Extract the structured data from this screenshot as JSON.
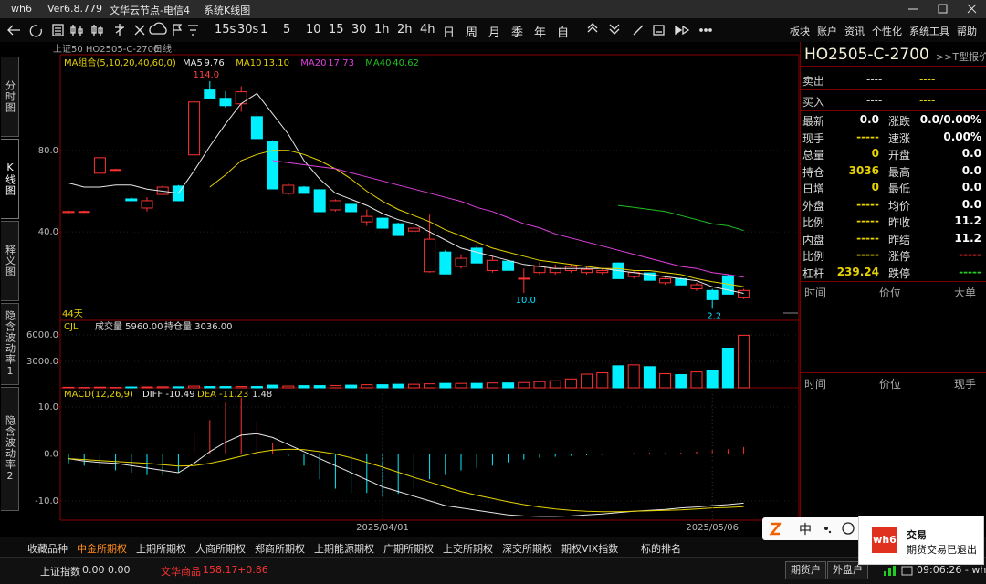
{
  "title_bar": {
    "app": "wh6",
    "version": "Ver6.8.779",
    "node": "文华云节点-电信4",
    "view": "系统K线图"
  },
  "toolbar": {
    "periods": [
      "15s",
      "30s",
      "1",
      "5",
      "10",
      "15",
      "30",
      "1h",
      "2h",
      "4h",
      "日",
      "周",
      "月",
      "季",
      "年",
      "自"
    ],
    "menu": [
      "板块",
      "账户",
      "资讯",
      "个性化",
      "系统工具",
      "帮助"
    ]
  },
  "side_tabs": [
    "分时图",
    "K线图",
    "释义图",
    "隐含波动率1",
    "隐含波动率2"
  ],
  "chart_header": {
    "symbol": "上证50 HO2505-C-2700",
    "period": "日线"
  },
  "kline": {
    "legend": "MA组合(5,10,20,40,60,0)",
    "ylim": [
      -3,
      127
    ],
    "yticks": [
      {
        "value": 40,
        "label": "40.0"
      },
      {
        "value": 80,
        "label": "80.0"
      }
    ],
    "up_color": "#ff3232",
    "down_color": "#00f0ff",
    "days": "44天",
    "high_label": "114.0",
    "low_labels": [
      "10.0",
      "2.2"
    ],
    "dates": [
      null,
      null,
      null,
      null,
      null,
      null,
      null,
      null,
      null,
      null,
      null,
      null,
      null,
      null,
      null,
      null,
      null,
      null,
      null,
      null,
      "2025/04/01",
      null,
      null,
      null,
      null,
      null,
      null,
      null,
      null,
      null,
      null,
      null,
      null,
      null,
      null,
      null,
      null,
      null,
      null,
      null,
      null,
      "2025/05/06",
      null,
      null
    ],
    "candles": [
      [
        49.5,
        50.5,
        49,
        50
      ],
      [
        50,
        50.5,
        49.5,
        50
      ],
      [
        68.8,
        76.4,
        68.8,
        76.4
      ],
      [
        70.6,
        71,
        70.4,
        70.6
      ],
      [
        56.2,
        57,
        55,
        55.3
      ],
      [
        51.7,
        57,
        50,
        55.3
      ],
      [
        58.4,
        63,
        58,
        62
      ],
      [
        62.5,
        63,
        55,
        55.3
      ],
      [
        77.8,
        105,
        77.8,
        103.8
      ],
      [
        109.7,
        114,
        105.6,
        105.6
      ],
      [
        105.6,
        109,
        101,
        102
      ],
      [
        102.9,
        111.5,
        99,
        108.8
      ],
      [
        96.6,
        99,
        85.8,
        85.8
      ],
      [
        84.5,
        85,
        61.1,
        61.1
      ],
      [
        58.9,
        64,
        58,
        62.9
      ],
      [
        62,
        62.5,
        58.9,
        58.9
      ],
      [
        60.7,
        61,
        49.9,
        49.9
      ],
      [
        50.8,
        56,
        50,
        55.3
      ],
      [
        53.5,
        54,
        49.9,
        49.9
      ],
      [
        44.9,
        51,
        43,
        47.6
      ],
      [
        46.7,
        47,
        41.8,
        41.8
      ],
      [
        44,
        44.5,
        38.2,
        38.2
      ],
      [
        40.4,
        44,
        40,
        41.8
      ],
      [
        20.4,
        48.5,
        20,
        36.4
      ],
      [
        30.1,
        31,
        19.3,
        19.3
      ],
      [
        23,
        29,
        22,
        27
      ],
      [
        32,
        33,
        24.7,
        24.7
      ],
      [
        21,
        28,
        20,
        26
      ],
      [
        25.6,
        26,
        21.1,
        21.1
      ],
      [
        17,
        22,
        10,
        17.2
      ],
      [
        20,
        25,
        19,
        23
      ],
      [
        20,
        24,
        19,
        22
      ],
      [
        21,
        24,
        20,
        23
      ],
      [
        20,
        23,
        19,
        21.5
      ],
      [
        20,
        22,
        19,
        21
      ],
      [
        24.7,
        25,
        17,
        17
      ],
      [
        18,
        21,
        17,
        20
      ],
      [
        19.8,
        20,
        16.2,
        16.2
      ],
      [
        15,
        18,
        14,
        17
      ],
      [
        17,
        17.5,
        13.9,
        13.9
      ],
      [
        12,
        15,
        11,
        14
      ],
      [
        11.2,
        12,
        2.2,
        6.7
      ],
      [
        18.4,
        19,
        9.4,
        9.4
      ],
      [
        7.6,
        12,
        7,
        11.2
      ]
    ],
    "ma_series": [
      {
        "name": "MA5",
        "last_label": "9.76",
        "color": "#e8e8e8",
        "values": [
          64,
          62,
          62,
          63,
          63,
          61,
          60,
          59,
          70,
          82,
          93,
          103,
          108,
          98,
          88,
          75,
          66,
          59,
          56,
          53,
          49,
          46,
          44,
          40,
          36,
          32,
          30,
          28,
          26,
          24,
          23,
          22,
          22,
          22,
          22,
          21,
          20,
          19,
          18,
          17,
          16,
          13,
          11.5,
          9.76
        ]
      },
      {
        "name": "MA10",
        "last_label": "13.10",
        "color": "#e6d200",
        "values": [
          null,
          null,
          null,
          null,
          null,
          null,
          null,
          null,
          null,
          62,
          68,
          75,
          78,
          80,
          80,
          78,
          75,
          71,
          66,
          60,
          55,
          51,
          48,
          45,
          41,
          38,
          35,
          32,
          30,
          28,
          26,
          25,
          24,
          23,
          22,
          22,
          21,
          21,
          20,
          19,
          17,
          15.5,
          14.3,
          13.1
        ]
      },
      {
        "name": "MA20",
        "last_label": "17.73",
        "color": "#e040e0",
        "values": [
          null,
          null,
          null,
          null,
          null,
          null,
          null,
          null,
          null,
          null,
          null,
          null,
          null,
          75,
          74,
          73,
          72,
          71,
          69,
          67,
          65,
          63,
          61,
          59,
          57,
          55,
          52,
          50,
          47,
          44,
          42,
          39,
          37,
          35,
          33,
          31,
          29,
          27,
          25,
          23,
          22,
          20,
          19,
          17.73
        ]
      },
      {
        "name": "MA40",
        "last_label": "40.62",
        "color": "#20c020",
        "values": [
          null,
          null,
          null,
          null,
          null,
          null,
          null,
          null,
          null,
          null,
          null,
          null,
          null,
          null,
          null,
          null,
          null,
          null,
          null,
          null,
          null,
          null,
          null,
          null,
          null,
          null,
          null,
          null,
          null,
          null,
          null,
          null,
          null,
          null,
          null,
          53,
          52,
          51,
          50,
          48,
          46,
          44,
          43,
          40.62
        ]
      }
    ]
  },
  "volume": {
    "name": "CJL",
    "volume_text": "成交量 5960.00",
    "oi_text": "持仓量 3036.00",
    "ylim": [
      0,
      7550
    ],
    "yticks": [
      {
        "value": 3000,
        "label": "3000.0"
      },
      {
        "value": 6000,
        "label": "6000.0"
      }
    ],
    "values": [
      60,
      40,
      80,
      40,
      100,
      100,
      120,
      120,
      200,
      150,
      150,
      150,
      150,
      300,
      200,
      250,
      250,
      250,
      300,
      350,
      350,
      400,
      400,
      450,
      500,
      500,
      500,
      550,
      550,
      600,
      700,
      800,
      1000,
      1550,
      1700,
      2500,
      2600,
      2400,
      1600,
      1500,
      1800,
      2000,
      4500,
      5960
    ]
  },
  "macd": {
    "name": "MACD(12,26,9)",
    "diff_text": "DIFF -10.49",
    "dea_text": "DEA -11.23",
    "macd_text": "1.48",
    "ylim": [
      -14.1,
      13.5
    ],
    "yticks": [
      {
        "value": 10,
        "label": "10.0"
      },
      {
        "value": 0,
        "label": "0.0"
      },
      {
        "value": -10,
        "label": "-10.0"
      }
    ],
    "diff_color": "#e8e8e8",
    "dea_color": "#e6d200",
    "hist": [
      -2,
      -2.5,
      -3,
      -3.5,
      -4,
      -4.5,
      -4.5,
      -4,
      4.3,
      7.2,
      11,
      12,
      6.8,
      2.3,
      -0.5,
      -2.5,
      -5.4,
      -7.4,
      -8.3,
      -8.3,
      -9.3,
      -8.5,
      -7.4,
      -5.4,
      -4.5,
      -3.5,
      -3,
      -2.5,
      -1.8,
      -1.2,
      -0.8,
      -0.6,
      -0.4,
      -0.3,
      -0.2,
      0.1,
      0.2,
      0.3,
      0.2,
      0.3,
      0.5,
      0.8,
      1,
      1.48
    ],
    "diff": [
      -1,
      -1.5,
      -1.8,
      -2,
      -2.5,
      -3,
      -3.5,
      -4,
      -2,
      0.5,
      2.5,
      4,
      4.3,
      3.5,
      2,
      0.5,
      -1,
      -2.5,
      -4,
      -5.5,
      -7,
      -8,
      -9,
      -10,
      -11,
      -11.5,
      -12,
      -12.5,
      -13,
      -13.2,
      -13.3,
      -13.3,
      -13.2,
      -13,
      -12.8,
      -12.5,
      -12.2,
      -12,
      -11.8,
      -11.5,
      -11.3,
      -11,
      -10.8,
      -10.49
    ],
    "dea": [
      -1,
      -1.2,
      -1.4,
      -1.6,
      -1.8,
      -2,
      -2.3,
      -2.6,
      -2.5,
      -2,
      -1.3,
      -0.5,
      0.3,
      0.8,
      1,
      0.9,
      0.5,
      0,
      -0.8,
      -1.8,
      -2.8,
      -3.9,
      -5,
      -6,
      -7,
      -8,
      -8.8,
      -9.5,
      -10.2,
      -10.8,
      -11.3,
      -11.7,
      -12,
      -12.2,
      -12.3,
      -12.3,
      -12.2,
      -12.1,
      -12,
      -11.9,
      -11.7,
      -11.5,
      -11.4,
      -11.23
    ]
  },
  "quote": {
    "title": "HO2505-C-2700",
    "t_quote": ">>T型报价",
    "ask": {
      "label": "卖出",
      "price": "----",
      "vol": "----"
    },
    "bid": {
      "label": "买入",
      "price": "----",
      "vol": "----"
    },
    "rows": [
      {
        "label": "最新",
        "value": "0.0",
        "color": "#ffffff",
        "label2": "涨跌",
        "value2": "0.0/0.00%",
        "color2": "#ffffff"
      },
      {
        "label": "现手",
        "value": "-----",
        "color": "#e6d200",
        "label2": "速涨",
        "value2": "0.00%",
        "color2": "#ffffff"
      },
      {
        "label": "总量",
        "value": "0",
        "color": "#e6d200",
        "label2": "开盘",
        "value2": "0.0",
        "color2": "#ffffff"
      },
      {
        "label": "持仓",
        "value": "3036",
        "color": "#e6d200",
        "label2": "最高",
        "value2": "0.0",
        "color2": "#ffffff"
      },
      {
        "label": "日增",
        "value": "0",
        "color": "#e6d200",
        "label2": "最低",
        "value2": "0.0",
        "color2": "#ffffff"
      },
      {
        "label": "外盘",
        "value": "-----",
        "color": "#e6d200",
        "label2": "均价",
        "value2": "0.0",
        "color2": "#ffffff"
      },
      {
        "label": "比例",
        "value": "-----",
        "color": "#e6d200",
        "label2": "昨收",
        "value2": "11.2",
        "color2": "#ffffff"
      },
      {
        "label": "内盘",
        "value": "-----",
        "color": "#e6d200",
        "label2": "昨结",
        "value2": "11.2",
        "color2": "#ffffff"
      },
      {
        "label": "比例",
        "value": "-----",
        "color": "#e6d200",
        "label2": "涨停",
        "value2": "-----",
        "color2": "#ff3232"
      },
      {
        "label": "杠杆",
        "value": "239.24",
        "color": "#e6d200",
        "label2": "跌停",
        "value2": "-----",
        "color2": "#20d020"
      }
    ],
    "ticks_header": [
      "时间",
      "价位",
      "大单"
    ],
    "trades_header": [
      "时间",
      "价位",
      "现手"
    ]
  },
  "bottom_tabs": {
    "items": [
      "收藏品种",
      "中金所期权",
      "上期所期权",
      "大商所期权",
      "郑商所期权",
      "上期能源期权",
      "广期所期权",
      "上交所期权",
      "深交所期权",
      "期权VIX指数",
      "标的排名"
    ],
    "active": "中金所期权"
  },
  "status": {
    "index1": {
      "name": "上证指数",
      "value": "0.00",
      "change": "0.00"
    },
    "index2": {
      "name": "文华商品",
      "value": "158.17",
      "change": "+0.86"
    },
    "buttons": [
      "期货户",
      "外盘户"
    ],
    "time": "09:06:26 - wh"
  },
  "ime": {
    "lang": "中"
  },
  "toast": {
    "title": "交易",
    "message": "期货交易已退出"
  }
}
